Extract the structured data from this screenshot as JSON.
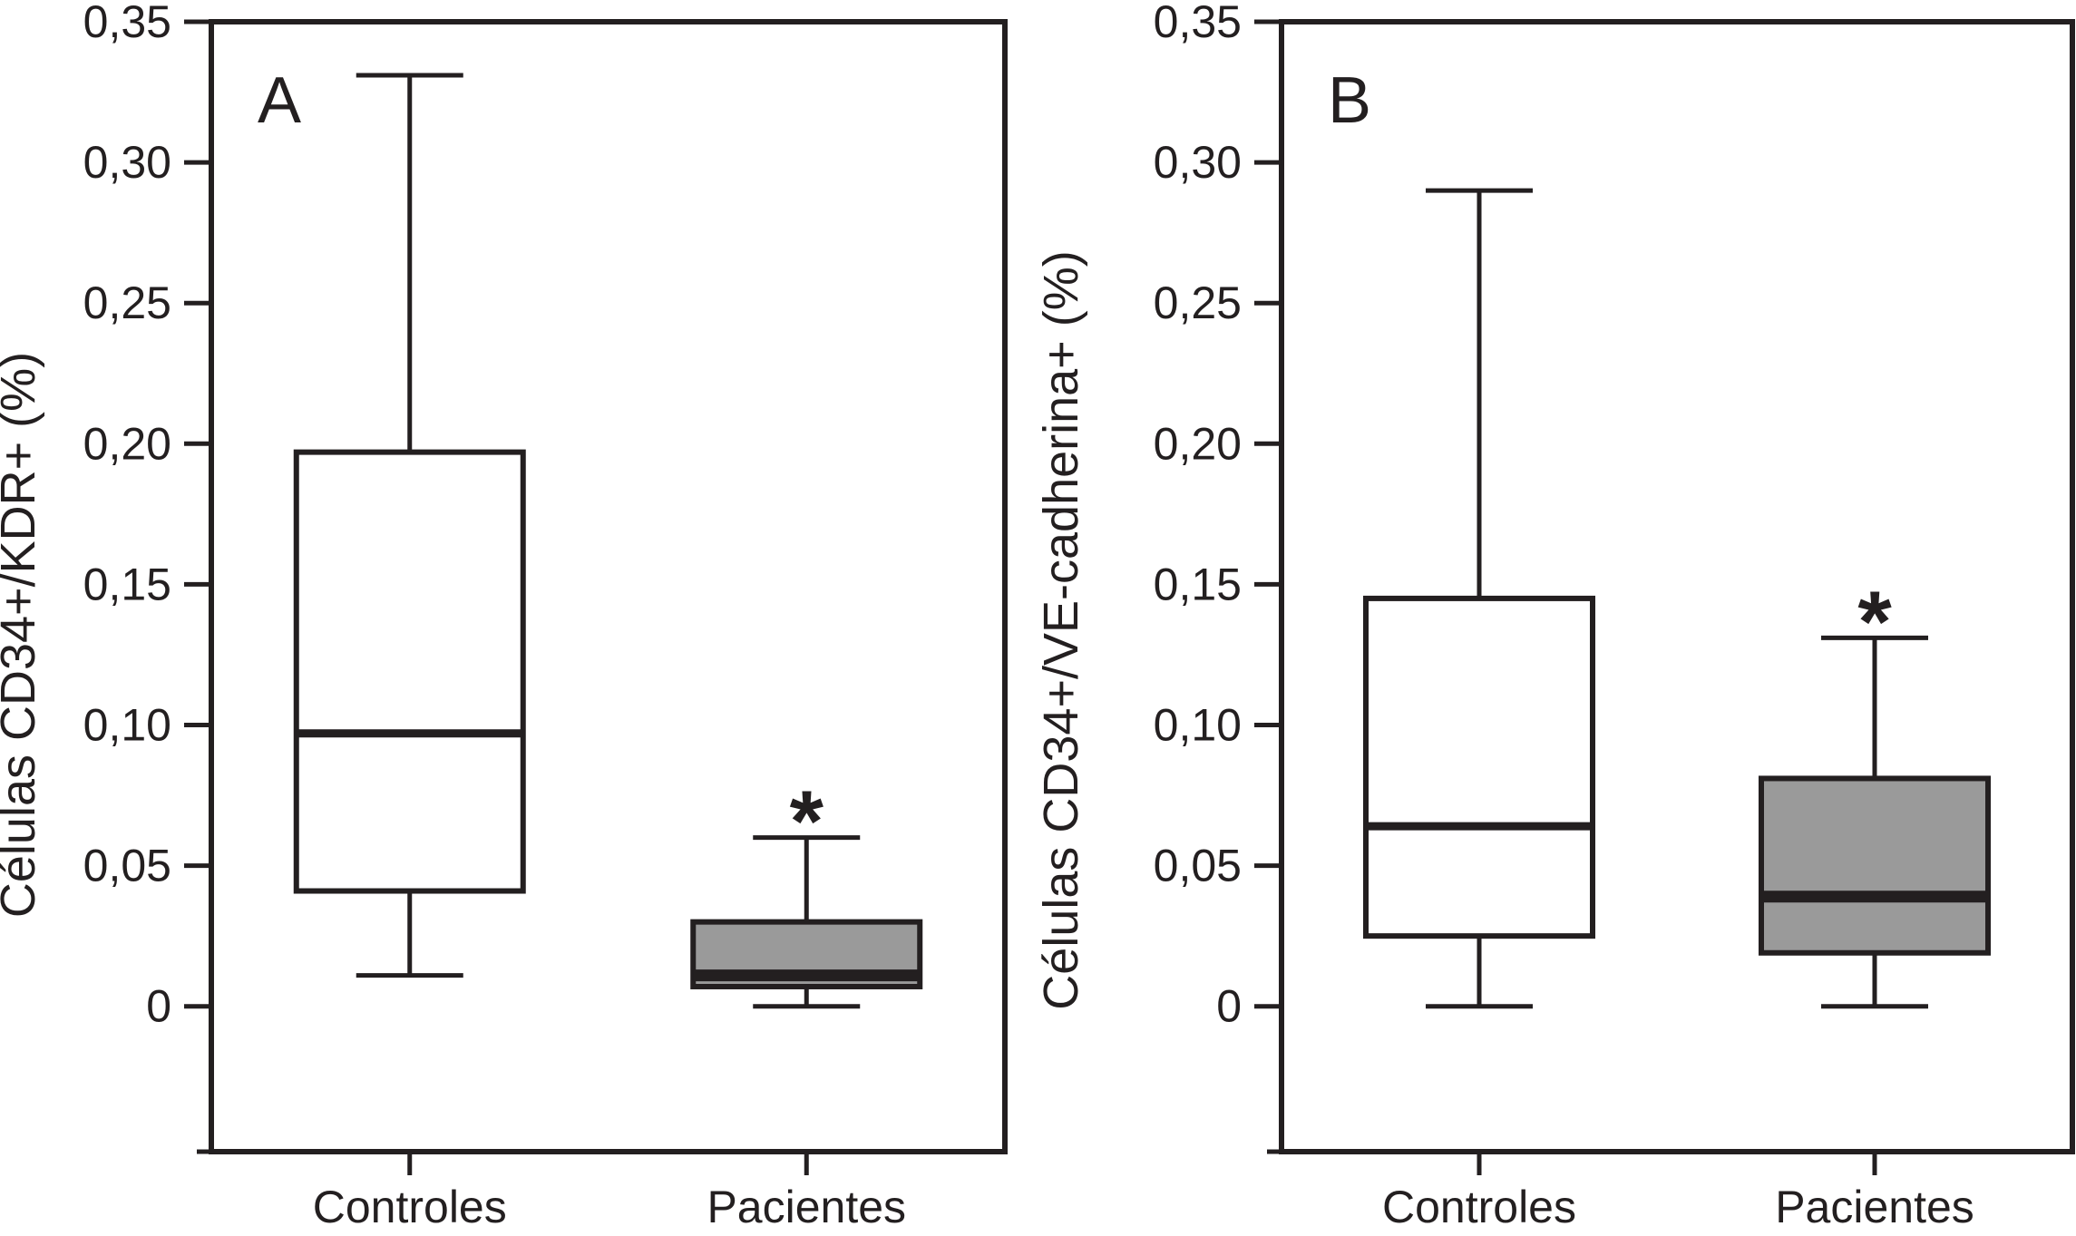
{
  "figure": {
    "background": "#ffffff",
    "significance_marker": "*",
    "x_categories": [
      "Controles",
      "Pacientes"
    ]
  },
  "colors": {
    "stroke": "#231f20",
    "control_box_fill": "#ffffff",
    "patient_box_fill": "#9a9a9a",
    "background": "#ffffff"
  },
  "chart_data": [
    {
      "type": "boxplot",
      "panel_label": "A",
      "ylabel": "Células CD34+/KDR+ (%)",
      "xlabel": "",
      "categories": [
        "Controles",
        "Pacientes"
      ],
      "yticks": [
        0.35,
        0.3,
        0.25,
        0.2,
        0.15,
        0.1,
        0.05,
        0
      ],
      "ytick_labels": [
        "0,35",
        "0,30",
        "0,25",
        "0,20",
        "0,15",
        "0,10",
        "0,05",
        "0"
      ],
      "ylim": [
        -0.052,
        0.35
      ],
      "grid": false,
      "boxes": [
        {
          "group": "Controles",
          "whisker_low": 0.011,
          "q1": 0.041,
          "median": 0.097,
          "q3": 0.197,
          "whisker_high": 0.331,
          "fill": "#ffffff",
          "significant": false
        },
        {
          "group": "Pacientes",
          "whisker_low": 0.0,
          "q1": 0.007,
          "median": 0.011,
          "q3": 0.03,
          "whisker_high": 0.06,
          "fill": "#9a9a9a",
          "significant": true
        }
      ]
    },
    {
      "type": "boxplot",
      "panel_label": "B",
      "ylabel": "Células CD34+/VE-cadherina+ (%)",
      "xlabel": "",
      "categories": [
        "Controles",
        "Pacientes"
      ],
      "yticks": [
        0.35,
        0.3,
        0.25,
        0.2,
        0.15,
        0.1,
        0.05,
        0
      ],
      "ytick_labels": [
        "0,35",
        "0,30",
        "0,25",
        "0,20",
        "0,15",
        "0,10",
        "0,05",
        "0"
      ],
      "ylim": [
        -0.052,
        0.35
      ],
      "grid": false,
      "boxes": [
        {
          "group": "Controles",
          "whisker_low": 0.0,
          "q1": 0.025,
          "median": 0.064,
          "q3": 0.145,
          "whisker_high": 0.29,
          "fill": "#ffffff",
          "significant": false
        },
        {
          "group": "Pacientes",
          "whisker_low": 0.0,
          "q1": 0.019,
          "median": 0.039,
          "q3": 0.081,
          "whisker_high": 0.131,
          "fill": "#9a9a9a",
          "significant": true
        }
      ]
    }
  ]
}
